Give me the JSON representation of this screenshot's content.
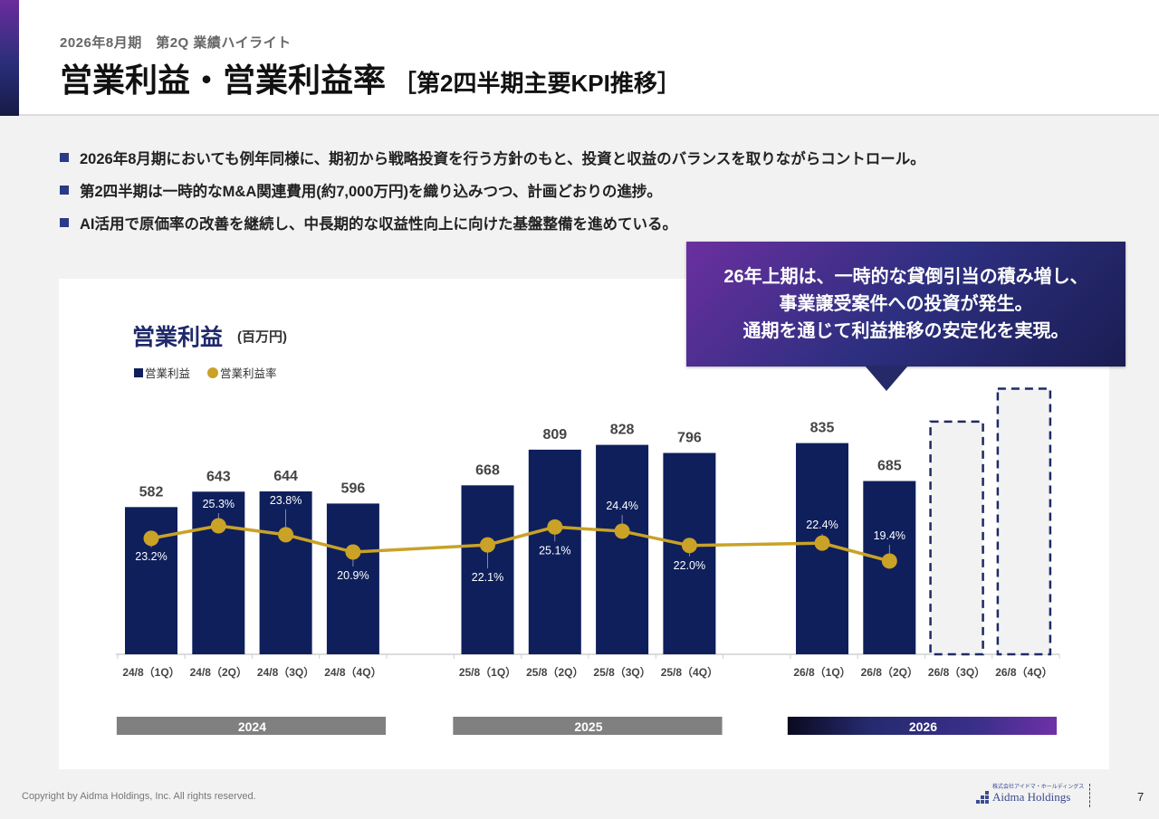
{
  "header": {
    "subtitle": "2026年8月期　第2Q 業績ハイライト",
    "title": "営業利益・営業利益率",
    "title_sub": "［第2四半期主要KPI推移］"
  },
  "bullets": [
    "2026年8月期においても例年同様に、期初から戦略投資を行う方針のもと、投資と収益のバランスを取りながらコントロール。",
    "第2四半期は一時的なM&A関連費用(約7,000万円)を織り込みつつ、計画どおりの進捗。",
    "AI活用で原価率の改善を継続し、中長期的な収益性向上に向けた基盤整備を進めている。"
  ],
  "callout": {
    "lines": [
      "26年上期は、一時的な貸倒引当の積み増し、",
      "事業譲受案件への投資が発生。",
      "通期を通じて利益推移の安定化を実現。"
    ]
  },
  "chart_data": {
    "type": "bar",
    "title": "営業利益",
    "unit": "(百万円)",
    "legend": [
      {
        "label": "営業利益",
        "marker": "square",
        "color": "#0e1f5b"
      },
      {
        "label": "営業利益率",
        "marker": "circle",
        "color": "#c9a227"
      }
    ],
    "legend_position": "top-left",
    "categories": [
      "24/8（1Q）",
      "24/8（2Q）",
      "24/8（3Q）",
      "24/8（4Q）",
      "25/8（1Q）",
      "25/8（2Q）",
      "25/8（3Q）",
      "25/8（4Q）",
      "26/8（1Q）",
      "26/8（2Q）",
      "26/8（3Q）",
      "26/8（4Q）"
    ],
    "category_groups": [
      {
        "label": "2024",
        "indices": [
          0,
          1,
          2,
          3
        ],
        "style": "gray"
      },
      {
        "label": "2025",
        "indices": [
          4,
          5,
          6,
          7
        ],
        "style": "gray"
      },
      {
        "label": "2026",
        "indices": [
          8,
          9,
          10,
          11
        ],
        "style": "gradient"
      }
    ],
    "series": [
      {
        "name": "営業利益",
        "kind": "bar",
        "values": [
          582,
          643,
          644,
          596,
          668,
          809,
          828,
          796,
          835,
          685,
          null,
          null
        ],
        "labels": [
          "582",
          "643",
          "644",
          "596",
          "668",
          "809",
          "828",
          "796",
          "835",
          "685",
          "",
          ""
        ]
      },
      {
        "name": "営業利益率",
        "kind": "line",
        "values": [
          23.2,
          25.3,
          23.8,
          20.9,
          22.1,
          25.1,
          24.4,
          22.0,
          22.4,
          19.4,
          null,
          null
        ],
        "labels": [
          "23.2%",
          "25.3%",
          "23.8%",
          "20.9%",
          "22.1%",
          "25.1%",
          "24.4%",
          "22.0%",
          "22.4%",
          "19.4%",
          "",
          ""
        ]
      }
    ],
    "placeholder_bars": {
      "note": "26/8 (3Q) and 26/8 (4Q) shown as dashed outline forecast placeholders, no value labels",
      "approx_values": [
        920,
        1050
      ]
    },
    "ylim_bar": [
      0,
      1100
    ],
    "ylim_rate_pct": [
      0,
      30
    ],
    "grid": false,
    "colors": {
      "bar": "#0e1f5b",
      "line": "#c9a227",
      "placeholder_stroke": "#1f2a66",
      "placeholder_fill": "#f2f2f2",
      "group_gray": "#808080"
    }
  },
  "footer": {
    "copyright": "Copyright by Aidma Holdings, Inc. All rights reserved.",
    "logo_small": "株式会社アイドマ・ホールディングス",
    "logo_main": "Aidma Holdings",
    "page_number": "7"
  }
}
